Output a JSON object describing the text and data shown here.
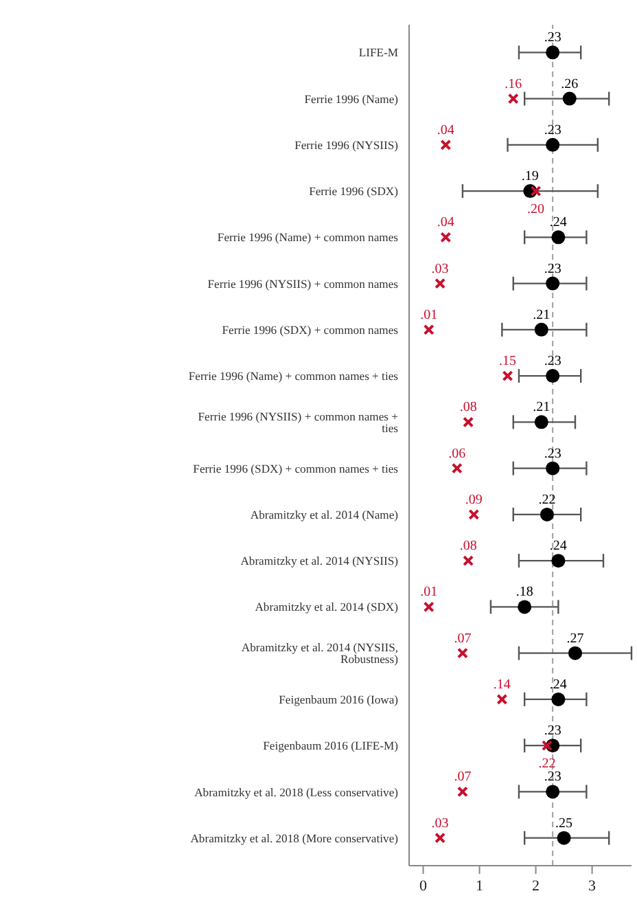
{
  "chart_data": {
    "type": "scatter",
    "orientation": "horizontal",
    "categories": [
      "LIFE-M",
      "Ferrie 1996 (Name)",
      "Ferrie 1996 (NYSIIS)",
      "Ferrie 1996 (SDX)",
      "Ferrie 1996 (Name) + common names",
      "Ferrie 1996 (NYSIIS) + common names",
      "Ferrie 1996 (SDX) + common names",
      "Ferrie 1996 (Name) + common names + ties",
      "Ferrie 1996 (NYSIIS) + common names + ties",
      "Ferrie 1996 (SDX) + common names + ties",
      "Abramitzky et al. 2014 (Name)",
      "Abramitzky et al. 2014 (NYSIIS)",
      "Abramitzky et al. 2014 (SDX)",
      "Abramitzky et al. 2014 (NYSIIS, Robustness)",
      "Feigenbaum 2016 (Iowa)",
      "Feigenbaum 2016 (LIFE-M)",
      "Abramitzky et al. 2018 (Less conservative)",
      "Abramitzky et al. 2018 (More conservative)"
    ],
    "series": [
      {
        "color": "#000000",
        "marker": "circle",
        "values": [
          2.3,
          2.6,
          2.3,
          1.9,
          2.4,
          2.3,
          2.1,
          2.3,
          2.1,
          2.3,
          2.2,
          2.4,
          1.8,
          2.7,
          2.4,
          2.3,
          2.3,
          2.5
        ],
        "errors": [
          [
            1.7,
            2.8
          ],
          [
            1.8,
            3.3
          ],
          [
            1.5,
            3.1
          ],
          [
            0.7,
            3.1
          ],
          [
            1.8,
            2.9
          ],
          [
            1.6,
            2.9
          ],
          [
            1.4,
            2.9
          ],
          [
            1.7,
            2.8
          ],
          [
            1.6,
            2.7
          ],
          [
            1.6,
            2.9
          ],
          [
            1.6,
            2.8
          ],
          [
            1.7,
            3.2
          ],
          [
            1.2,
            2.4
          ],
          [
            1.7,
            3.7
          ],
          [
            1.8,
            2.9
          ],
          [
            1.8,
            2.8
          ],
          [
            1.7,
            2.9
          ],
          [
            1.8,
            3.3
          ]
        ]
      },
      {
        "color": "#c8102e",
        "marker": "cross",
        "values": [
          null,
          1.6,
          0.4,
          2.0,
          0.4,
          0.3,
          0.1,
          1.5,
          0.8,
          0.6,
          0.9,
          0.8,
          0.1,
          0.7,
          1.4,
          2.2,
          0.7,
          0.3
        ]
      }
    ],
    "annotations": [
      {
        "text": ".16",
        "x": 1.6,
        "y": "Ferrie 1996 (Name)"
      },
      {
        "text": ".04",
        "x": 0.4,
        "y": "Ferrie 1996 (NYSIIS)"
      },
      {
        "text": ".20",
        "x": 2.0,
        "y": "Ferrie 1996 (SDX)"
      },
      {
        "text": ".04",
        "x": 0.4,
        "y": "Ferrie 1996 (Name) + common names"
      },
      {
        "text": ".03",
        "x": 0.3,
        "y": "Ferrie 1996 (NYSIIS) + common names"
      },
      {
        "text": ".01",
        "x": 0.1,
        "y": "Ferrie 1996 (SDX) + common names"
      },
      {
        "text": ".15",
        "x": 1.5,
        "y": "Ferrie 1996 (Name) + common names + ties"
      },
      {
        "text": ".08",
        "x": 0.8,
        "y": "Ferrie 1996 (NYSIIS) + common names + ties"
      },
      {
        "text": ".06",
        "x": 0.6,
        "y": "Ferrie 1996 (SDX) + common names + ties"
      },
      {
        "text": ".09",
        "x": 0.9,
        "y": "Abramitzky et al. 2014 (Name)"
      },
      {
        "text": ".08",
        "x": 0.8,
        "y": "Abramitzky et al. 2014 (NYSIIS)"
      },
      {
        "text": ".01",
        "x": 0.1,
        "y": "Abramitzky et al. 2014 (SDX)"
      },
      {
        "text": ".07",
        "x": 0.7,
        "y": "Abramitzky et al. 2014 (NYSIIS, Robustness)"
      },
      {
        "text": ".14",
        "x": 1.4,
        "y": "Feigenbaum 2016 (Iowa)"
      },
      {
        "text": ".22",
        "x": 2.2,
        "y": "Feigenbaum 2016 (LIFE-M)"
      },
      {
        "text": ".07",
        "x": 0.7,
        "y": "Abramitzky et al. 2018 (Less conservative)"
      },
      {
        "text": ".03",
        "x": 0.3,
        "y": "Abramitzky et al. 2018 (More conservative)"
      },
      {
        "text": ".23",
        "x": 2.3,
        "y": "LIFE-M"
      },
      {
        "text": ".26",
        "x": 2.6,
        "y": "Ferrie 1996 (Name)"
      },
      {
        "text": ".23",
        "x": 2.3,
        "y": "Ferrie 1996 (NYSIIS)"
      },
      {
        "text": ".19",
        "x": 1.9,
        "y": "Ferrie 1996 (SDX)"
      },
      {
        "text": ".24",
        "x": 2.4,
        "y": "Ferrie 1996 (Name) + common names"
      },
      {
        "text": ".23",
        "x": 2.3,
        "y": "Ferrie 1996 (NYSIIS) + common names"
      },
      {
        "text": ".21",
        "x": 2.1,
        "y": "Ferrie 1996 (SDX) + common names"
      },
      {
        "text": ".23",
        "x": 2.3,
        "y": "Ferrie 1996 (Name) + common names + ties"
      },
      {
        "text": ".21",
        "x": 2.1,
        "y": "Ferrie 1996 (NYSIIS) + common names + ties"
      },
      {
        "text": ".23",
        "x": 2.3,
        "y": "Ferrie 1996 (SDX) + common names + ties"
      },
      {
        "text": ".22",
        "x": 2.2,
        "y": "Abramitzky et al. 2014 (Name)"
      },
      {
        "text": ".24",
        "x": 2.4,
        "y": "Abramitzky et al. 2014 (NYSIIS)"
      },
      {
        "text": ".18",
        "x": 1.8,
        "y": "Abramitzky et al. 2014 (SDX)"
      },
      {
        "text": ".27",
        "x": 2.7,
        "y": "Abramitzky et al. 2014 (NYSIIS, Robustness)"
      },
      {
        "text": ".24",
        "x": 2.4,
        "y": "Feigenbaum 2016 (Iowa)"
      },
      {
        "text": ".23",
        "x": 2.3,
        "y": "Feigenbaum 2016 (LIFE-M)"
      },
      {
        "text": ".23",
        "x": 2.3,
        "y": "Abramitzky et al. 2018 (Less conservative)"
      },
      {
        "text": ".25",
        "x": 2.5,
        "y": "Abramitzky et al. 2018 (More conservative)"
      }
    ],
    "xlim": [
      -0.25,
      3.7
    ],
    "xticks": [
      0,
      1,
      2,
      3
    ],
    "ref_lines": [
      {
        "axis": "x",
        "value": 2.3,
        "color": "#9aa0a6",
        "line_style": "dashed"
      }
    ],
    "grid": false,
    "legend": false
  }
}
